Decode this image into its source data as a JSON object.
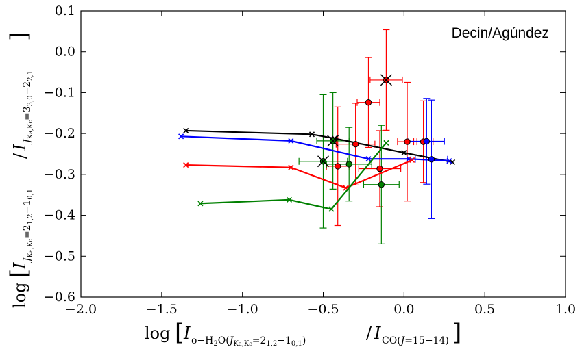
{
  "chart_data": {
    "type": "scatter",
    "title": "",
    "annotation": "Decin/Agúndez",
    "xlabel": "log [ I_o−H2O(J_Ka,Kc=2_1,2−1_0,1) / I_CO(J=15−14) ]",
    "ylabel": "log [ I_J_Ka,Kc=2_1,2−1_0,1 / I_J_Ka,Kc=3_0,3−2_2,1 ]",
    "xlim": [
      -2.0,
      1.0
    ],
    "ylim": [
      -0.6,
      0.1
    ],
    "xticks": [
      -2.0,
      -1.5,
      -1.0,
      -0.5,
      0.0,
      0.5,
      1.0
    ],
    "yticks": [
      -0.6,
      -0.5,
      -0.4,
      -0.3,
      -0.2,
      -0.1,
      0.0,
      0.1
    ],
    "xtick_labels": [
      "−2.0",
      "−1.5",
      "−1.0",
      "−0.5",
      "0.0",
      "0.5",
      "1.0"
    ],
    "ytick_labels": [
      "−0.6",
      "−0.5",
      "−0.4",
      "−0.3",
      "−0.2",
      "−0.1",
      "0.0",
      "0.1"
    ],
    "model_lines": [
      {
        "name": "black",
        "color": "#000000",
        "x": [
          -1.35,
          -0.57,
          -0.43,
          0.0,
          0.3
        ],
        "y": [
          -0.193,
          -0.202,
          -0.212,
          -0.247,
          -0.27
        ]
      },
      {
        "name": "blue",
        "color": "#0000ff",
        "x": [
          -1.38,
          -0.7,
          -0.22,
          0.03,
          0.28
        ],
        "y": [
          -0.207,
          -0.218,
          -0.262,
          -0.262,
          -0.267
        ]
      },
      {
        "name": "red",
        "color": "#ff0000",
        "x": [
          -1.35,
          -0.7,
          -0.36,
          0.05
        ],
        "y": [
          -0.277,
          -0.283,
          -0.333,
          -0.265
        ]
      },
      {
        "name": "green",
        "color": "#008000",
        "x": [
          -1.26,
          -0.71,
          -0.45,
          -0.11
        ],
        "y": [
          -0.371,
          -0.362,
          -0.385,
          -0.223
        ]
      }
    ],
    "observations": [
      {
        "color": "#ff0000",
        "x": -0.11,
        "y": -0.069,
        "xerr": 0.1,
        "yerr": 0.123
      },
      {
        "color": "#ff0000",
        "x": -0.22,
        "y": -0.124,
        "xerr": 0.07,
        "yerr": 0.11
      },
      {
        "color": "#ff0000",
        "x": -0.3,
        "y": -0.226,
        "xerr": 0.12,
        "yerr": 0.1
      },
      {
        "color": "#ff0000",
        "x": -0.41,
        "y": -0.28,
        "xerr": 0.07,
        "yerr": 0.145
      },
      {
        "color": "#ff0000",
        "x": -0.15,
        "y": -0.286,
        "xerr": 0.13,
        "yerr": 0.093
      },
      {
        "color": "#ff0000",
        "x": 0.02,
        "y": -0.22,
        "xerr": 0.06,
        "yerr": 0.145
      },
      {
        "color": "#ff0000",
        "x": 0.12,
        "y": -0.22,
        "xerr": 0.06,
        "yerr": 0.1
      },
      {
        "color": "#0000ff",
        "x": 0.17,
        "y": -0.263,
        "xerr": 0.1,
        "yerr": 0.145
      },
      {
        "color": "#0000ff",
        "x": 0.14,
        "y": -0.219,
        "xerr": 0.11,
        "yerr": 0.105
      },
      {
        "color": "#008000",
        "x": -0.5,
        "y": -0.268,
        "xerr": 0.15,
        "yerr": 0.163
      },
      {
        "color": "#008000",
        "x": -0.44,
        "y": -0.218,
        "xerr": 0.1,
        "yerr": 0.118
      },
      {
        "color": "#008000",
        "x": -0.34,
        "y": -0.275,
        "xerr": 0.14,
        "yerr": 0.09
      },
      {
        "color": "#008000",
        "x": -0.14,
        "y": -0.325,
        "xerr": 0.11,
        "yerr": 0.145
      }
    ],
    "highlighted_points": [
      {
        "color": "#000000",
        "x": -0.11,
        "y": -0.069
      },
      {
        "color": "#000000",
        "x": -0.5,
        "y": -0.268
      },
      {
        "color": "#000000",
        "x": -0.44,
        "y": -0.218
      }
    ]
  }
}
